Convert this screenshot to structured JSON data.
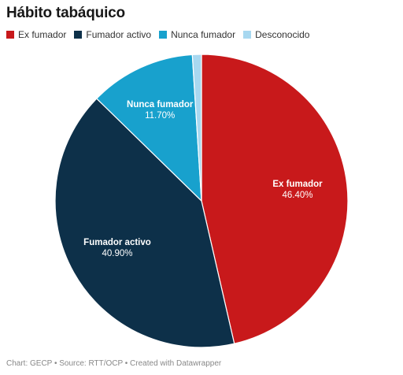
{
  "chart_data": {
    "type": "pie",
    "title": "Hábito tabáquico",
    "categories": [
      "Ex fumador",
      "Fumador activo",
      "Nunca fumador",
      "Desconocido"
    ],
    "values": [
      46.4,
      40.9,
      11.7,
      1.0
    ],
    "value_labels": [
      "46.40%",
      "40.90%",
      "11.70%",
      ""
    ],
    "colors": [
      "#c8191b",
      "#0d3049",
      "#18a1cd",
      "#a8d8f0"
    ],
    "start_angle_deg": 0,
    "direction": "clockwise",
    "legend_placement": "top-left"
  },
  "footer": {
    "source": "Chart: GECP • Source: RTT/OCP • Created with Datawrapper"
  }
}
